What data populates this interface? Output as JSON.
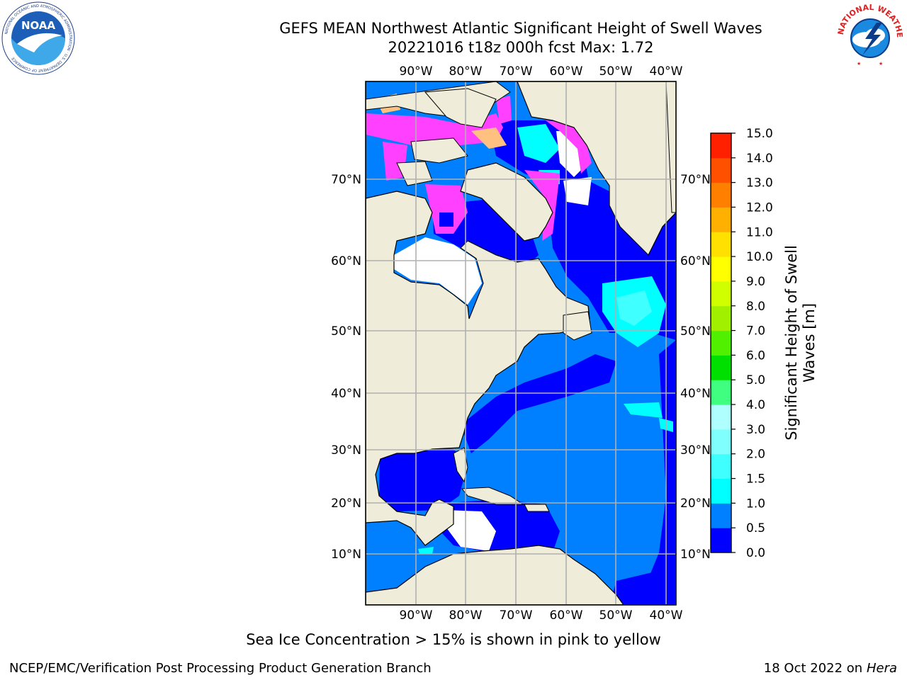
{
  "header": {
    "title_line1": "GEFS MEAN Northwest Atlantic Significant Height of Swell Waves",
    "title_line2": "20221016 t18z 000h fcst   Max: 1.72"
  },
  "logos": {
    "left": "noaa-logo",
    "right": "national-weather-service-logo",
    "left_text": "NOAA",
    "right_text": "NATIONAL WEATHER SERVICE"
  },
  "map": {
    "lon_labels": [
      "90°W",
      "80°W",
      "70°W",
      "60°W",
      "50°W",
      "40°W"
    ],
    "lat_labels": [
      "70°N",
      "60°N",
      "50°N",
      "40°N",
      "30°N",
      "20°N",
      "10°N"
    ],
    "land_color": "#efedda",
    "grid_color": "#b0b0b0"
  },
  "colorbar": {
    "label_line1": "Significant Height of Swell",
    "label_line2": "Waves [m]",
    "ticks": [
      "0.0",
      "0.5",
      "1.0",
      "1.5",
      "2.0",
      "3.0",
      "4.0",
      "5.0",
      "6.0",
      "7.0",
      "8.0",
      "9.0",
      "10.0",
      "11.0",
      "12.0",
      "13.0",
      "14.0",
      "15.0"
    ],
    "colors": [
      "#0000ff",
      "#0080ff",
      "#00ffff",
      "#40ffff",
      "#80ffff",
      "#b0ffff",
      "#40ff80",
      "#00e000",
      "#50f000",
      "#a0f000",
      "#d0ff00",
      "#ffff00",
      "#ffe000",
      "#ffb000",
      "#ff8000",
      "#ff5000",
      "#ff2000"
    ]
  },
  "footer": {
    "sea_ice_note": "Sea Ice Concentration > 15% is shown in pink to yellow",
    "credit": "NCEP/EMC/Verification Post Processing Product Generation Branch",
    "date_prefix": "18 Oct 2022 on ",
    "date_host": "Hera"
  }
}
